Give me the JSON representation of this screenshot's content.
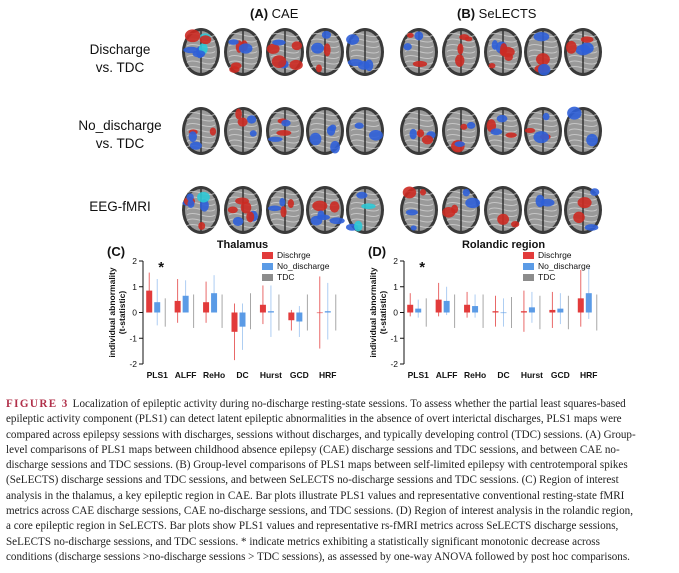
{
  "cropped_header_text": "",
  "panels": {
    "A": {
      "letter": "(A)",
      "name": "CAE"
    },
    "B": {
      "letter": "(B)",
      "name": "SeLECTS"
    }
  },
  "row_labels": [
    {
      "line1": "Discharge",
      "line2": "vs. TDC"
    },
    {
      "line1": "No_discharge",
      "line2": "vs. TDC"
    },
    {
      "line1": "EEG-fMRI",
      "line2": ""
    }
  ],
  "colors": {
    "discharge": "#e23b3b",
    "no_discharge": "#5b9be6",
    "tdc": "#8c8c8c",
    "caption_accent": "#b1304a",
    "brain_gray": "#9a9a9a",
    "activation_red": "#cc2a22",
    "activation_blue": "#2f5fd8",
    "activation_cyan": "#2ec9d6"
  },
  "chart_data": [
    {
      "type": "bar",
      "panel": "(C)",
      "title": "Thalamus",
      "ylabel": "individual abnormality\n(t-statistic)",
      "xlabel": "",
      "ylim": [
        -2,
        2
      ],
      "yticks": [
        -2,
        -1,
        0,
        1,
        2
      ],
      "categories": [
        "PLS1",
        "ALFF",
        "ReHo",
        "DC",
        "Hurst",
        "GCD",
        "HRF"
      ],
      "legend": [
        "Dischrge",
        "No_discharge",
        "TDC"
      ],
      "legend_position": "top-right",
      "significance": [
        {
          "category": "PLS1",
          "marker": "*"
        }
      ],
      "series": [
        {
          "name": "Dischrge",
          "values": [
            0.85,
            0.45,
            0.4,
            -0.75,
            0.3,
            -0.3,
            0.0
          ],
          "errors": [
            0.7,
            0.85,
            0.8,
            1.1,
            0.75,
            0.4,
            1.4
          ]
        },
        {
          "name": "No_discharge",
          "values": [
            0.4,
            0.65,
            0.75,
            -0.55,
            0.05,
            -0.35,
            0.05
          ],
          "errors": [
            0.9,
            0.6,
            0.7,
            0.9,
            1.0,
            0.6,
            1.1
          ]
        },
        {
          "name": "TDC",
          "values": [
            0.0,
            0.05,
            0.05,
            0.05,
            0.0,
            0.0,
            0.0
          ],
          "errors": [
            0.55,
            0.65,
            0.65,
            0.7,
            0.7,
            0.7,
            0.7
          ]
        }
      ]
    },
    {
      "type": "bar",
      "panel": "(D)",
      "title": "Rolandic region",
      "ylabel": "individual abnormality\n(t-statistic)",
      "xlabel": "",
      "ylim": [
        -2,
        2
      ],
      "yticks": [
        -2,
        -1,
        0,
        1,
        2
      ],
      "categories": [
        "PLS1",
        "ALFF",
        "ReHo",
        "DC",
        "Hurst",
        "GCD",
        "HRF"
      ],
      "legend": [
        "Dischrge",
        "No_discharge",
        "TDC"
      ],
      "legend_position": "top-right",
      "significance": [
        {
          "category": "PLS1",
          "marker": "*"
        }
      ],
      "series": [
        {
          "name": "Dischrge",
          "values": [
            0.3,
            0.5,
            0.3,
            0.05,
            0.05,
            0.1,
            0.55
          ],
          "errors": [
            0.45,
            0.65,
            0.5,
            0.6,
            0.8,
            0.7,
            1.1
          ]
        },
        {
          "name": "No_discharge",
          "values": [
            0.15,
            0.45,
            0.25,
            0.0,
            0.2,
            0.15,
            0.75
          ],
          "errors": [
            0.35,
            0.55,
            0.45,
            0.55,
            0.6,
            0.6,
            1.0
          ]
        },
        {
          "name": "TDC",
          "values": [
            0.0,
            0.05,
            0.05,
            0.0,
            0.0,
            0.0,
            0.0
          ],
          "errors": [
            0.55,
            0.65,
            0.65,
            0.6,
            0.65,
            0.65,
            0.7
          ]
        }
      ]
    }
  ],
  "caption": {
    "label": "FIGURE 3",
    "lines": [
      "Localization of epileptic activity during no-discharge resting-state sessions. To assess whether the partial least squares-based",
      "epileptic activity component (PLS1) can detect latent epileptic abnormalities in the absence of overt interictal discharges, PLS1 maps were",
      "compared across epilepsy sessions with discharges, sessions without discharges, and typically developing control (TDC) sessions. (A) Group-",
      "level comparisons of PLS1 maps between childhood absence epilepsy (CAE) discharge sessions and TDC sessions, and between CAE no-",
      "discharge sessions and TDC sessions. (B) Group-level comparisons of PLS1 maps between self-limited epilepsy with centrotemporal spikes",
      "(SeLECTS) discharge sessions and TDC sessions, and between SeLECTS no-discharge sessions and TDC sessions. (C) Region of interest",
      "analysis in the thalamus, a key epileptic region in CAE. Bar plots illustrate PLS1 values and representative conventional resting-state fMRI",
      "metrics across CAE discharge sessions, CAE no-discharge sessions, and TDC sessions. (D) Region of interest analysis in the rolandic region,",
      "a core epileptic region in SeLECTS. Bar plots show PLS1 values and representative rs-fMRI metrics across SeLECTS discharge sessions,",
      "SeLECTS no-discharge sessions, and TDC sessions. * indicate metrics exhibiting a statistically significant monotonic decrease across",
      "conditions (discharge sessions >no-discharge sessions > TDC sessions), as assessed by one-way ANOVA followed by post hoc comparisons."
    ]
  }
}
